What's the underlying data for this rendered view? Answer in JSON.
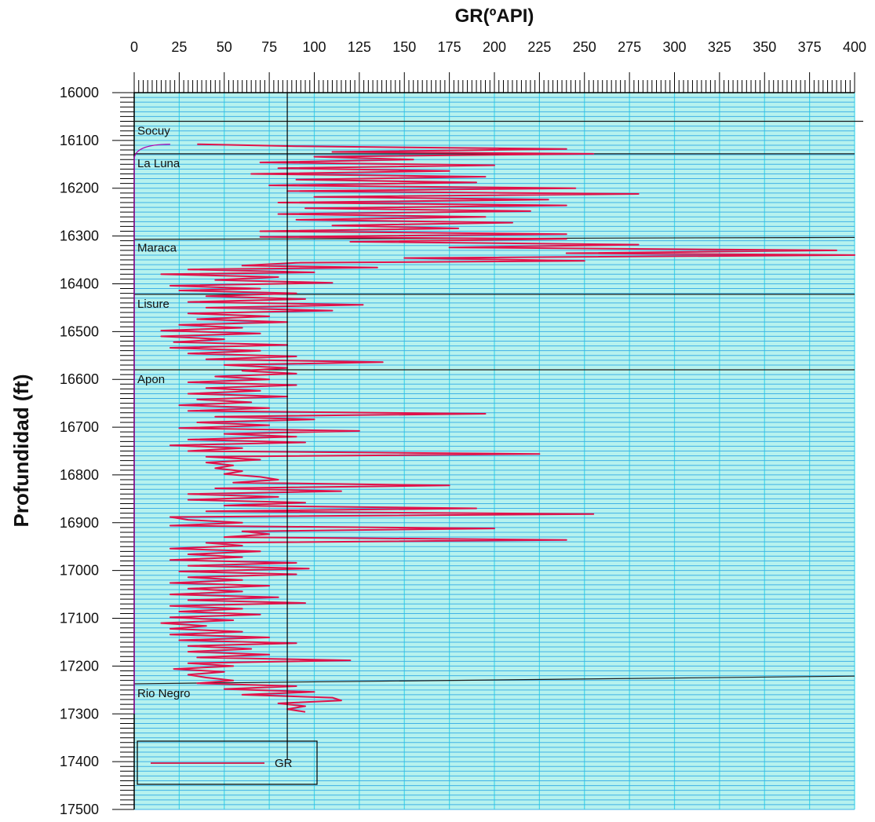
{
  "chart_data": {
    "type": "line",
    "title": "GR(ºAPI)",
    "xlabel": "GR(ºAPI)",
    "ylabel": "Profundidad (ft)",
    "xlim": [
      0,
      400
    ],
    "ylim": [
      16000,
      17500
    ],
    "y_inverted": true,
    "x_ticks": [
      "0",
      "25",
      "50",
      "75",
      "100",
      "125",
      "150",
      "175",
      "200",
      "225",
      "250",
      "275",
      "300",
      "325",
      "350",
      "375",
      "400"
    ],
    "y_ticks": [
      "16000",
      "16100",
      "16200",
      "16300",
      "16400",
      "16500",
      "16600",
      "16700",
      "16800",
      "16900",
      "17000",
      "17100",
      "17200",
      "17300",
      "17400",
      "17500"
    ],
    "grid": true,
    "cutoff_line_x": 85,
    "legend": {
      "placement": "bottom-left",
      "entries": [
        "GR"
      ]
    },
    "formations": [
      {
        "name": "Socuy",
        "top_depth": 16060,
        "base_left": 16128,
        "base_right": 16128
      },
      {
        "name": "La Luna",
        "top_depth": 16128,
        "base_left": 16307,
        "base_right": 16303
      },
      {
        "name": "Maraca",
        "top_depth": 16305,
        "base_left": 16422,
        "base_right": 16422
      },
      {
        "name": "Lisure",
        "top_depth": 16422,
        "base_left": 16580,
        "base_right": 16580
      },
      {
        "name": "Apon",
        "top_depth": 16580,
        "base_left": 17237,
        "base_right": 17221
      },
      {
        "name": "Rio Negro",
        "top_depth": 17237,
        "base_left": 17300,
        "base_right": 17300
      }
    ],
    "series": [
      {
        "name": "GR",
        "color": "#e0124a",
        "points": [
          [
            16108,
            35
          ],
          [
            16112,
            90
          ],
          [
            16118,
            240
          ],
          [
            16124,
            110
          ],
          [
            16128,
            255
          ],
          [
            16134,
            100
          ],
          [
            16140,
            155
          ],
          [
            16146,
            70
          ],
          [
            16152,
            200
          ],
          [
            16158,
            80
          ],
          [
            16164,
            175
          ],
          [
            16170,
            65
          ],
          [
            16176,
            195
          ],
          [
            16182,
            90
          ],
          [
            16188,
            190
          ],
          [
            16194,
            75
          ],
          [
            16200,
            245
          ],
          [
            16206,
            85
          ],
          [
            16212,
            280
          ],
          [
            16218,
            100
          ],
          [
            16224,
            230
          ],
          [
            16230,
            80
          ],
          [
            16236,
            240
          ],
          [
            16242,
            95
          ],
          [
            16248,
            220
          ],
          [
            16254,
            80
          ],
          [
            16260,
            195
          ],
          [
            16266,
            90
          ],
          [
            16272,
            210
          ],
          [
            16278,
            110
          ],
          [
            16284,
            180
          ],
          [
            16290,
            70
          ],
          [
            16296,
            240
          ],
          [
            16302,
            70
          ],
          [
            16306,
            240
          ],
          [
            16312,
            120
          ],
          [
            16318,
            280
          ],
          [
            16324,
            175
          ],
          [
            16330,
            390
          ],
          [
            16336,
            240
          ],
          [
            16340,
            400
          ],
          [
            16346,
            150
          ],
          [
            16352,
            250
          ],
          [
            16356,
            90
          ],
          [
            16362,
            60
          ],
          [
            16366,
            135
          ],
          [
            16370,
            30
          ],
          [
            16376,
            100
          ],
          [
            16380,
            15
          ],
          [
            16386,
            80
          ],
          [
            16392,
            45
          ],
          [
            16398,
            110
          ],
          [
            16404,
            20
          ],
          [
            16410,
            70
          ],
          [
            16414,
            25
          ],
          [
            16420,
            90
          ],
          [
            16426,
            40
          ],
          [
            16432,
            95
          ],
          [
            16438,
            30
          ],
          [
            16444,
            127
          ],
          [
            16450,
            40
          ],
          [
            16456,
            110
          ],
          [
            16462,
            30
          ],
          [
            16468,
            75
          ],
          [
            16474,
            35
          ],
          [
            16480,
            85
          ],
          [
            16486,
            25
          ],
          [
            16492,
            60
          ],
          [
            16498,
            15
          ],
          [
            16504,
            70
          ],
          [
            16510,
            15
          ],
          [
            16516,
            50
          ],
          [
            16522,
            22
          ],
          [
            16528,
            85
          ],
          [
            16534,
            20
          ],
          [
            16540,
            70
          ],
          [
            16546,
            30
          ],
          [
            16552,
            90
          ],
          [
            16558,
            40
          ],
          [
            16564,
            138
          ],
          [
            16570,
            50
          ],
          [
            16576,
            85
          ],
          [
            16582,
            60
          ],
          [
            16588,
            90
          ],
          [
            16594,
            45
          ],
          [
            16600,
            75
          ],
          [
            16606,
            30
          ],
          [
            16612,
            90
          ],
          [
            16618,
            40
          ],
          [
            16624,
            70
          ],
          [
            16630,
            30
          ],
          [
            16636,
            85
          ],
          [
            16642,
            35
          ],
          [
            16648,
            65
          ],
          [
            16654,
            25
          ],
          [
            16660,
            75
          ],
          [
            16666,
            30
          ],
          [
            16672,
            195
          ],
          [
            16678,
            45
          ],
          [
            16684,
            100
          ],
          [
            16690,
            35
          ],
          [
            16696,
            75
          ],
          [
            16702,
            25
          ],
          [
            16708,
            125
          ],
          [
            16714,
            50
          ],
          [
            16720,
            90
          ],
          [
            16726,
            30
          ],
          [
            16732,
            95
          ],
          [
            16738,
            20
          ],
          [
            16744,
            60
          ],
          [
            16750,
            30
          ],
          [
            16756,
            225
          ],
          [
            16762,
            40
          ],
          [
            16768,
            70
          ],
          [
            16774,
            40
          ],
          [
            16780,
            55
          ],
          [
            16786,
            45
          ],
          [
            16792,
            60
          ],
          [
            16798,
            50
          ],
          [
            16804,
            70
          ],
          [
            16810,
            80
          ],
          [
            16816,
            55
          ],
          [
            16822,
            175
          ],
          [
            16828,
            45
          ],
          [
            16834,
            115
          ],
          [
            16840,
            30
          ],
          [
            16846,
            80
          ],
          [
            16852,
            30
          ],
          [
            16858,
            95
          ],
          [
            16864,
            50
          ],
          [
            16870,
            190
          ],
          [
            16876,
            40
          ],
          [
            16882,
            255
          ],
          [
            16888,
            20
          ],
          [
            16894,
            30
          ],
          [
            16900,
            60
          ],
          [
            16906,
            20
          ],
          [
            16912,
            200
          ],
          [
            16918,
            60
          ],
          [
            16924,
            75
          ],
          [
            16930,
            50
          ],
          [
            16936,
            240
          ],
          [
            16942,
            40
          ],
          [
            16948,
            60
          ],
          [
            16954,
            20
          ],
          [
            16960,
            70
          ],
          [
            16966,
            30
          ],
          [
            16972,
            60
          ],
          [
            16978,
            20
          ],
          [
            16984,
            90
          ],
          [
            16990,
            30
          ],
          [
            16996,
            97
          ],
          [
            17002,
            25
          ],
          [
            17008,
            90
          ],
          [
            17014,
            30
          ],
          [
            17020,
            60
          ],
          [
            17026,
            20
          ],
          [
            17032,
            75
          ],
          [
            17038,
            30
          ],
          [
            17044,
            60
          ],
          [
            17050,
            20
          ],
          [
            17056,
            80
          ],
          [
            17062,
            30
          ],
          [
            17068,
            95
          ],
          [
            17074,
            20
          ],
          [
            17080,
            60
          ],
          [
            17086,
            25
          ],
          [
            17092,
            70
          ],
          [
            17098,
            20
          ],
          [
            17104,
            55
          ],
          [
            17110,
            15
          ],
          [
            17116,
            40
          ],
          [
            17122,
            20
          ],
          [
            17128,
            60
          ],
          [
            17134,
            20
          ],
          [
            17140,
            75
          ],
          [
            17146,
            25
          ],
          [
            17152,
            90
          ],
          [
            17158,
            30
          ],
          [
            17164,
            65
          ],
          [
            17170,
            30
          ],
          [
            17176,
            75
          ],
          [
            17182,
            35
          ],
          [
            17188,
            120
          ],
          [
            17194,
            30
          ],
          [
            17200,
            55
          ],
          [
            17206,
            22
          ],
          [
            17212,
            50
          ],
          [
            17218,
            30
          ],
          [
            17224,
            40
          ],
          [
            17230,
            55
          ],
          [
            17236,
            35
          ],
          [
            17242,
            90
          ],
          [
            17248,
            50
          ],
          [
            17254,
            100
          ],
          [
            17260,
            60
          ],
          [
            17266,
            110
          ],
          [
            17272,
            115
          ],
          [
            17278,
            80
          ],
          [
            17284,
            95
          ],
          [
            17290,
            85
          ],
          [
            17296,
            95
          ]
        ]
      }
    ]
  }
}
